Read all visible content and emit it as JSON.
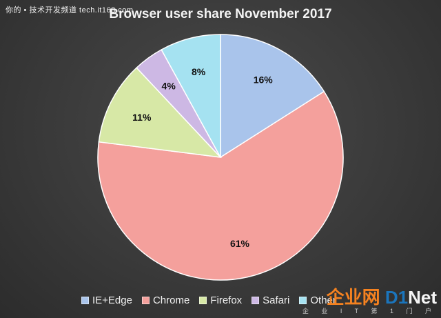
{
  "watermark_text": "你的 • 技术开发频道  tech.it168.com",
  "logo": {
    "brand_cn": "企业网",
    "brand_en_a": "D1",
    "brand_en_b": "Net",
    "subline": "企 业 I T 第 1 门 户"
  },
  "chart_data": {
    "type": "pie",
    "title": "Browser user share November 2017",
    "series": [
      {
        "name": "IE+Edge",
        "value": 16,
        "label": "16%",
        "color": "#a9c4eb"
      },
      {
        "name": "Chrome",
        "value": 61,
        "label": "61%",
        "color": "#f4a09c"
      },
      {
        "name": "Firefox",
        "value": 11,
        "label": "11%",
        "color": "#d7e8a6"
      },
      {
        "name": "Safari",
        "value": 4,
        "label": "4%",
        "color": "#cdb8e4"
      },
      {
        "name": "Other",
        "value": 8,
        "label": "8%",
        "color": "#a5e2f1"
      }
    ],
    "legend_position": "bottom"
  }
}
